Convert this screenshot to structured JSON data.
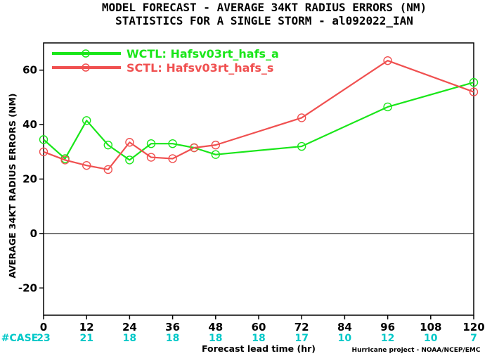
{
  "chart_data": {
    "type": "line",
    "title_line1": "MODEL FORECAST - AVERAGE 34KT RADIUS ERRORS (NM)",
    "title_line2": "STATISTICS FOR A SINGLE STORM - al092022_IAN",
    "xlabel": "Forecast lead time (hr)",
    "ylabel": "AVERAGE 34KT RADIUS ERRORS (NM)",
    "xlim": [
      0,
      120
    ],
    "ylim": [
      -30,
      70
    ],
    "x_ticks": [
      0,
      12,
      24,
      36,
      48,
      60,
      72,
      84,
      96,
      108,
      120
    ],
    "y_ticks": [
      -20,
      0,
      20,
      40,
      60
    ],
    "zero_line": true,
    "grid": false,
    "legend_position": "top-left",
    "series": [
      {
        "name": "WCTL: Hafsv03rt_hafs_a",
        "color": "#19e619",
        "x": [
          0,
          6,
          12,
          18,
          24,
          30,
          36,
          42,
          48,
          72,
          96,
          120
        ],
        "y": [
          34.5,
          27.5,
          41.5,
          32.5,
          27,
          33,
          33,
          31.5,
          29,
          32,
          46.5,
          55.5
        ]
      },
      {
        "name": "SCTL: Hafsv03rt_hafs_s",
        "color": "#f05050",
        "x": [
          0,
          6,
          12,
          18,
          24,
          30,
          36,
          42,
          48,
          72,
          96,
          120
        ],
        "y": [
          30,
          27,
          25,
          23.5,
          33.5,
          28,
          27.5,
          31.5,
          32.5,
          42.5,
          63.5,
          52
        ]
      }
    ],
    "cases": {
      "label": "#CASE",
      "label_color": "#00c8c8",
      "x": [
        0,
        12,
        24,
        36,
        48,
        60,
        72,
        84,
        96,
        108,
        120
      ],
      "counts": [
        "23",
        "21",
        "18",
        "18",
        "18",
        "18",
        "17",
        "10",
        "12",
        "10",
        "7"
      ]
    },
    "credit": "Hurricane project - NOAA/NCEP/EMC"
  }
}
